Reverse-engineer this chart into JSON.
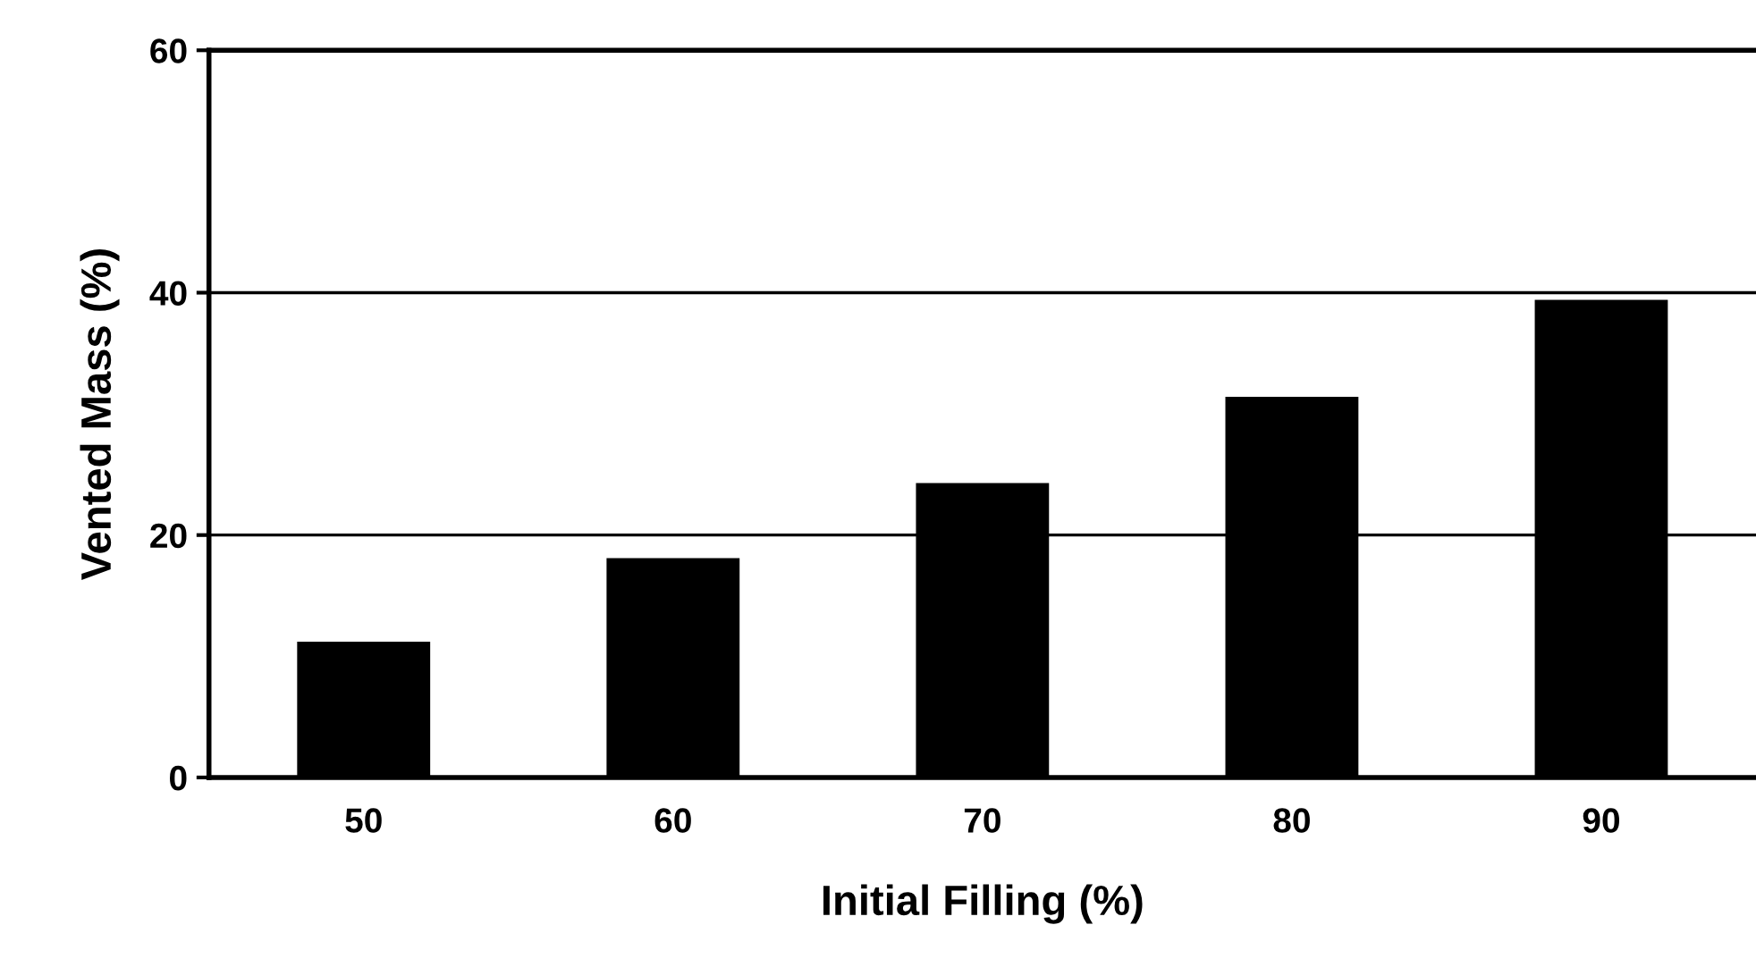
{
  "chart_data": {
    "type": "bar",
    "xlabel": "Initial Filling (%)",
    "ylabel": "Vented Mass (%)",
    "categories": [
      "50",
      "60",
      "70",
      "80",
      "90"
    ],
    "values": [
      11.2,
      18.1,
      24.3,
      31.4,
      39.4
    ],
    "color": "#000000",
    "ylim": [
      0,
      60
    ],
    "yticks": [
      0,
      20,
      40,
      60
    ],
    "grid": "y",
    "legend": false
  }
}
